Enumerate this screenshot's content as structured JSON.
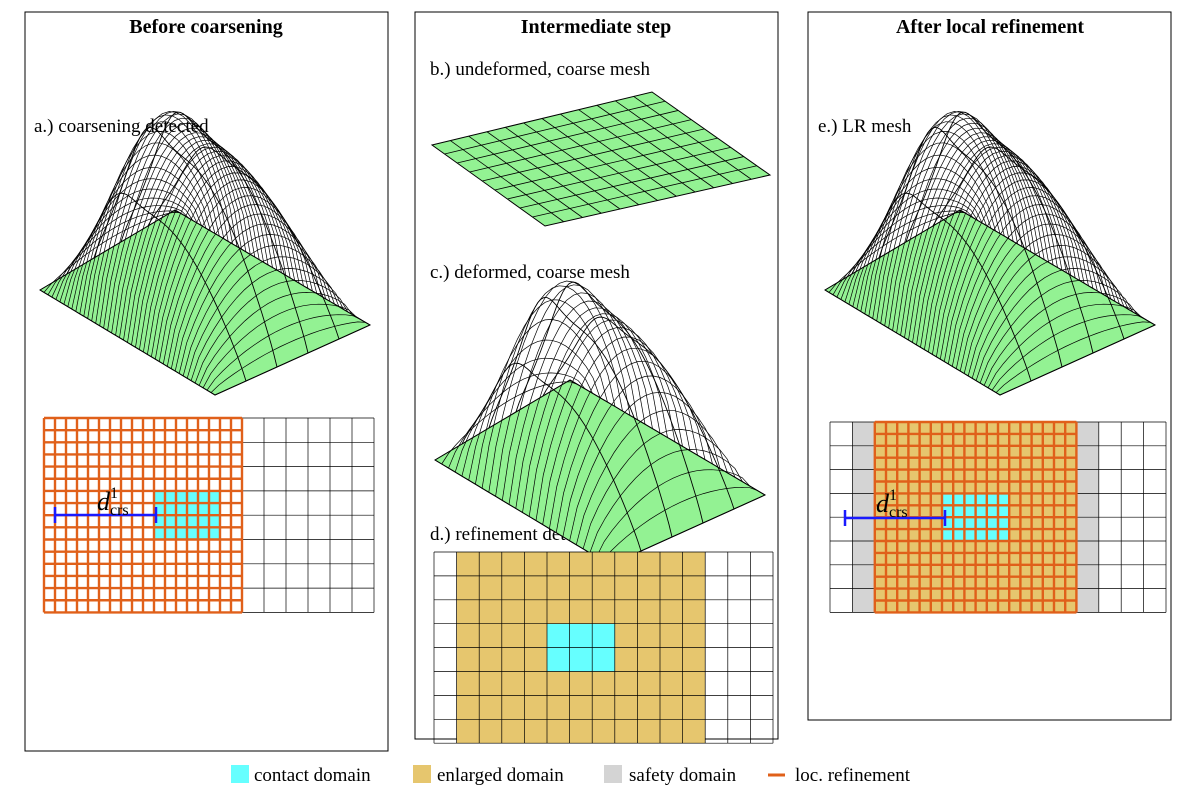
{
  "panels": [
    {
      "title": "Before coarsening"
    },
    {
      "title": "Intermediate step"
    },
    {
      "title": "After local refinement"
    }
  ],
  "labels": {
    "a": "a.) coarsening detected",
    "b": "b.) undeformed, coarse mesh",
    "c": "c.) deformed, coarse mesh",
    "d": "d.) refinement detected",
    "e": "e.) LR mesh"
  },
  "distance_symbol": {
    "base": "d",
    "sup": "1",
    "sub": "crs"
  },
  "legend": [
    {
      "label": "contact domain",
      "color": "#66ffff",
      "kind": "swatch"
    },
    {
      "label": "enlarged domain",
      "color": "#e6c66e",
      "kind": "swatch"
    },
    {
      "label": "safety domain",
      "color": "#d4d4d4",
      "kind": "swatch"
    },
    {
      "label": "loc. refinement",
      "color": "#e0601a",
      "kind": "line"
    }
  ],
  "colors": {
    "mesh_fill": "#93f293",
    "mesh_fill_dark": "#6fdc6f",
    "grid_line": "#000000",
    "refine_line": "#e0601a",
    "contact": "#66ffff",
    "enlarged": "#e6c66e",
    "safety": "#d4d4d4",
    "distance_bar": "#1a1aff"
  }
}
